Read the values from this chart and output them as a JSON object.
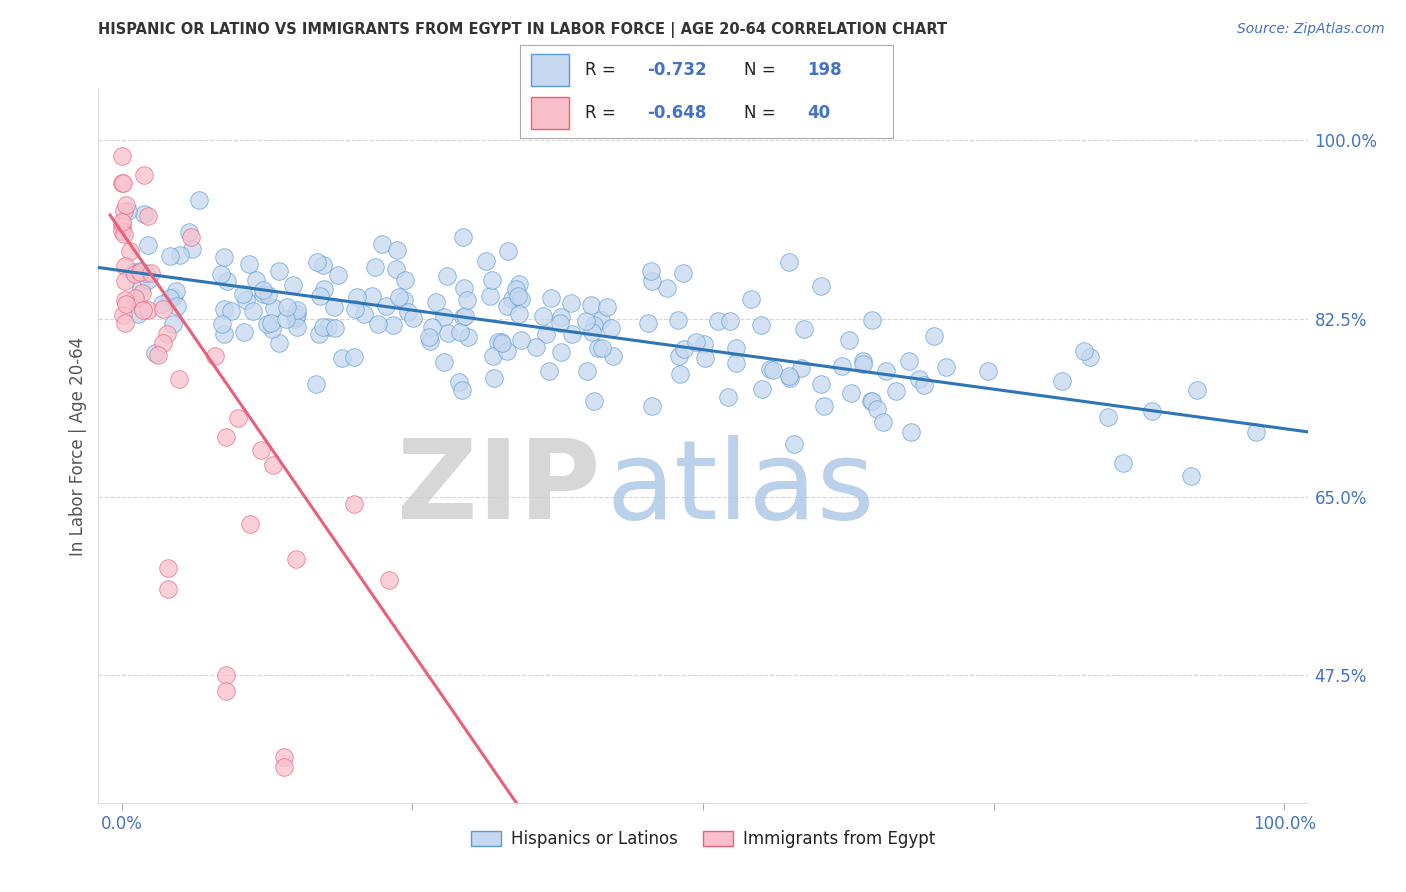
{
  "title": "HISPANIC OR LATINO VS IMMIGRANTS FROM EGYPT IN LABOR FORCE | AGE 20-64 CORRELATION CHART",
  "source": "Source: ZipAtlas.com",
  "ylabel": "In Labor Force | Age 20-64",
  "xlim": [
    -0.02,
    1.02
  ],
  "ylim": [
    0.35,
    1.05
  ],
  "ytick_values": [
    0.475,
    0.65,
    0.825,
    1.0
  ],
  "ytick_labels": [
    "47.5%",
    "65.0%",
    "82.5%",
    "100.0%"
  ],
  "blue_R": "-0.732",
  "blue_N": "198",
  "pink_R": "-0.648",
  "pink_N": "40",
  "blue_fill_color": "#c5d8ef",
  "blue_edge_color": "#5b9bd5",
  "pink_fill_color": "#f9c0cc",
  "pink_edge_color": "#e8607a",
  "blue_line_color": "#2e75b6",
  "pink_line_color": "#e8607a",
  "legend_label_blue": "Hispanics or Latinos",
  "legend_label_pink": "Immigrants from Egypt",
  "watermark_zip": "ZIP",
  "watermark_atlas": "atlas",
  "watermark_zip_color": "#d0d0d0",
  "watermark_atlas_color": "#b0c8e8",
  "background_color": "#ffffff",
  "grid_color": "#cccccc",
  "title_color": "#333333",
  "blue_intercept": 0.872,
  "blue_slope": -0.155,
  "pink_intercept": 0.91,
  "pink_slope": -1.65
}
